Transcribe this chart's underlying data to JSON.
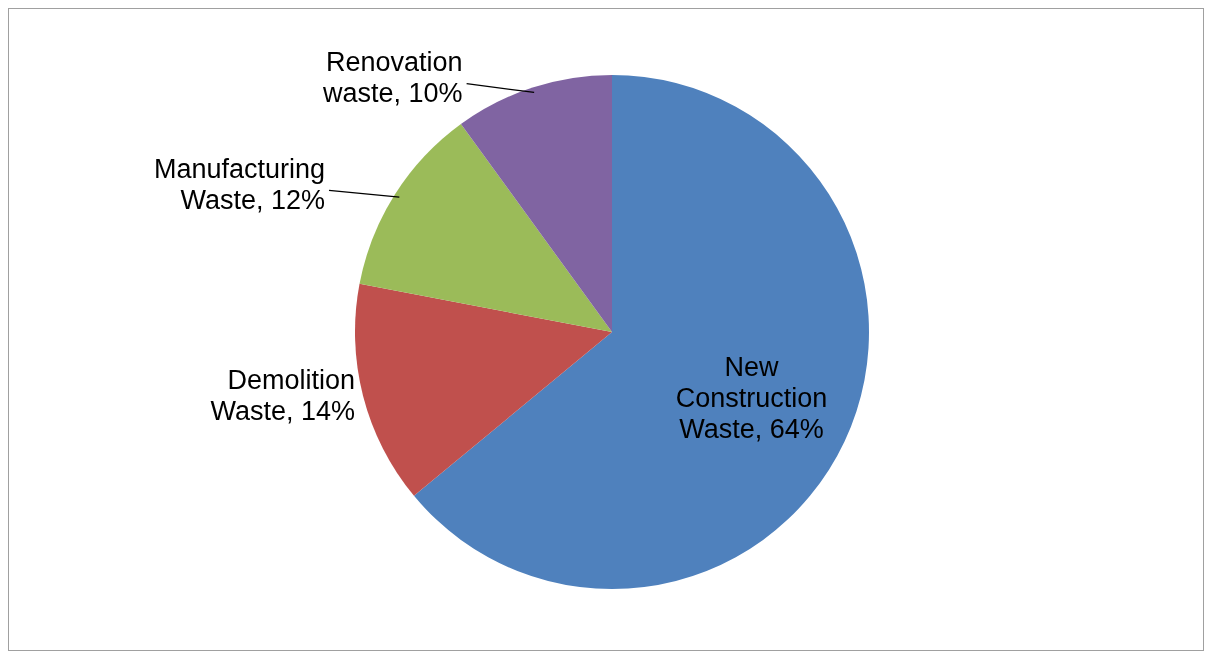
{
  "chart_data": {
    "type": "pie",
    "categories": [
      "New Construction Waste",
      "Demolition Waste",
      "Manufacturing Waste",
      "Renovation waste"
    ],
    "values": [
      64,
      14,
      12,
      10
    ],
    "value_labels": [
      "64%",
      "14%",
      "12%",
      "10%"
    ],
    "colors": [
      "#4f81bd",
      "#c0504d",
      "#9bbb59",
      "#8064a2"
    ]
  }
}
